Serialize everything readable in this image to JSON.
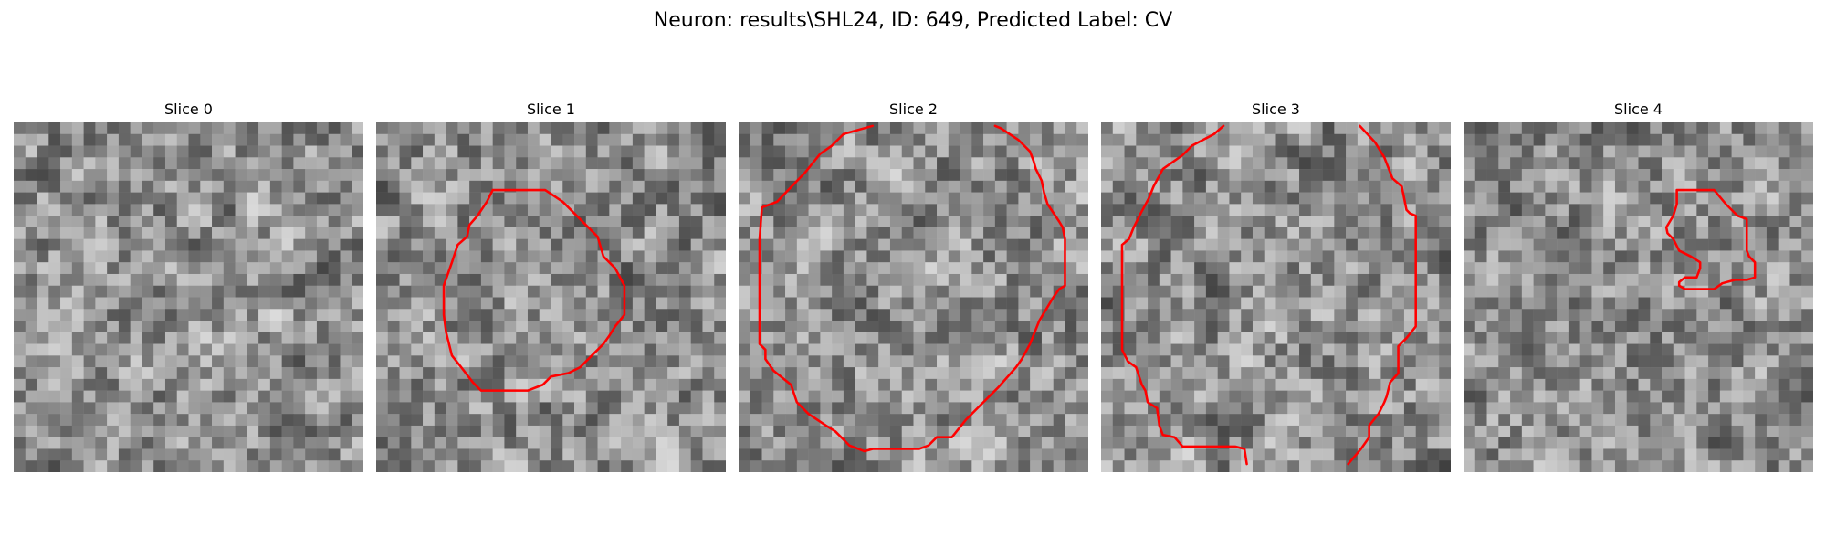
{
  "figure": {
    "title": "Neuron: results\\SHL24, ID: 649, Predicted Label: CV",
    "contour_color": "#ff0000",
    "colormap": "gray"
  },
  "panels": [
    {
      "title": "Slice 0",
      "seed": 11,
      "has_contour": false
    },
    {
      "title": "Slice 1",
      "seed": 23,
      "has_contour": true
    },
    {
      "title": "Slice 2",
      "seed": 37,
      "has_contour": true
    },
    {
      "title": "Slice 3",
      "seed": 41,
      "has_contour": true
    },
    {
      "title": "Slice 4",
      "seed": 53,
      "has_contour": true
    }
  ]
}
